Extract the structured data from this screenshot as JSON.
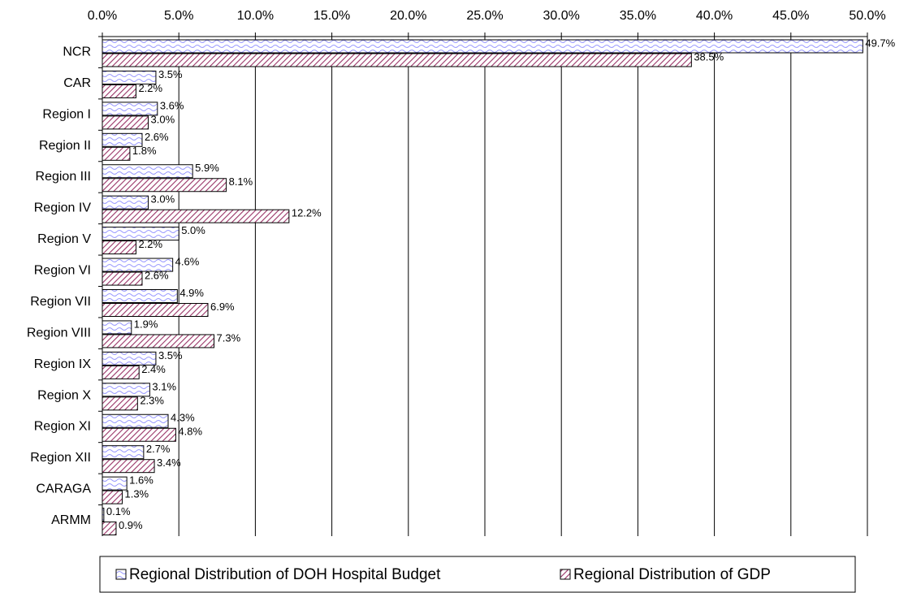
{
  "chart_data": {
    "type": "bar",
    "orientation": "horizontal",
    "categories": [
      "NCR",
      "CAR",
      "Region I",
      "Region II",
      "Region III",
      "Region IV",
      "Region V",
      "Region VI",
      "Region VII",
      "Region VIII",
      "Region IX",
      "Region X",
      "Region XI",
      "Region XII",
      "CARAGA",
      "ARMM"
    ],
    "series": [
      {
        "name": "Regional Distribution of DOH Hospital Budget",
        "color": "#9999ff",
        "values": [
          49.7,
          3.5,
          3.6,
          2.6,
          5.9,
          3.0,
          5.0,
          4.6,
          4.9,
          1.9,
          3.5,
          3.1,
          4.3,
          2.7,
          1.6,
          0.1
        ],
        "value_labels": [
          "49.7%",
          "3.5%",
          "3.6%",
          "2.6%",
          "5.9%",
          "3.0%",
          "5.0%",
          "4.6%",
          "4.9%",
          "1.9%",
          "3.5%",
          "3.1%",
          "4.3%",
          "2.7%",
          "1.6%",
          "0.1%"
        ]
      },
      {
        "name": "Regional Distribution of GDP",
        "color": "#993366",
        "values": [
          38.5,
          2.2,
          3.0,
          1.8,
          8.1,
          12.2,
          2.2,
          2.6,
          6.9,
          7.3,
          2.4,
          2.3,
          4.8,
          3.4,
          1.3,
          0.9
        ],
        "value_labels": [
          "38.5%",
          "2.2%",
          "3.0%",
          "1.8%",
          "8.1%",
          "12.2%",
          "2.2%",
          "2.6%",
          "6.9%",
          "7.3%",
          "2.4%",
          "2.3%",
          "4.8%",
          "3.4%",
          "1.3%",
          "0.9%"
        ]
      }
    ],
    "xlim": [
      0,
      50
    ],
    "xticks": [
      {
        "value": 0,
        "label": "0.0%"
      },
      {
        "value": 5,
        "label": "5.0%"
      },
      {
        "value": 10,
        "label": "10.0%"
      },
      {
        "value": 15,
        "label": "15.0%"
      },
      {
        "value": 20,
        "label": "20.0%"
      },
      {
        "value": 25,
        "label": "25.0%"
      },
      {
        "value": 30,
        "label": "30.0%"
      },
      {
        "value": 35,
        "label": "35.0%"
      },
      {
        "value": 40,
        "label": "40.0%"
      },
      {
        "value": 45,
        "label": "45.0%"
      },
      {
        "value": 50,
        "label": "50.0%"
      }
    ],
    "grid": true,
    "legend": "bottom"
  }
}
